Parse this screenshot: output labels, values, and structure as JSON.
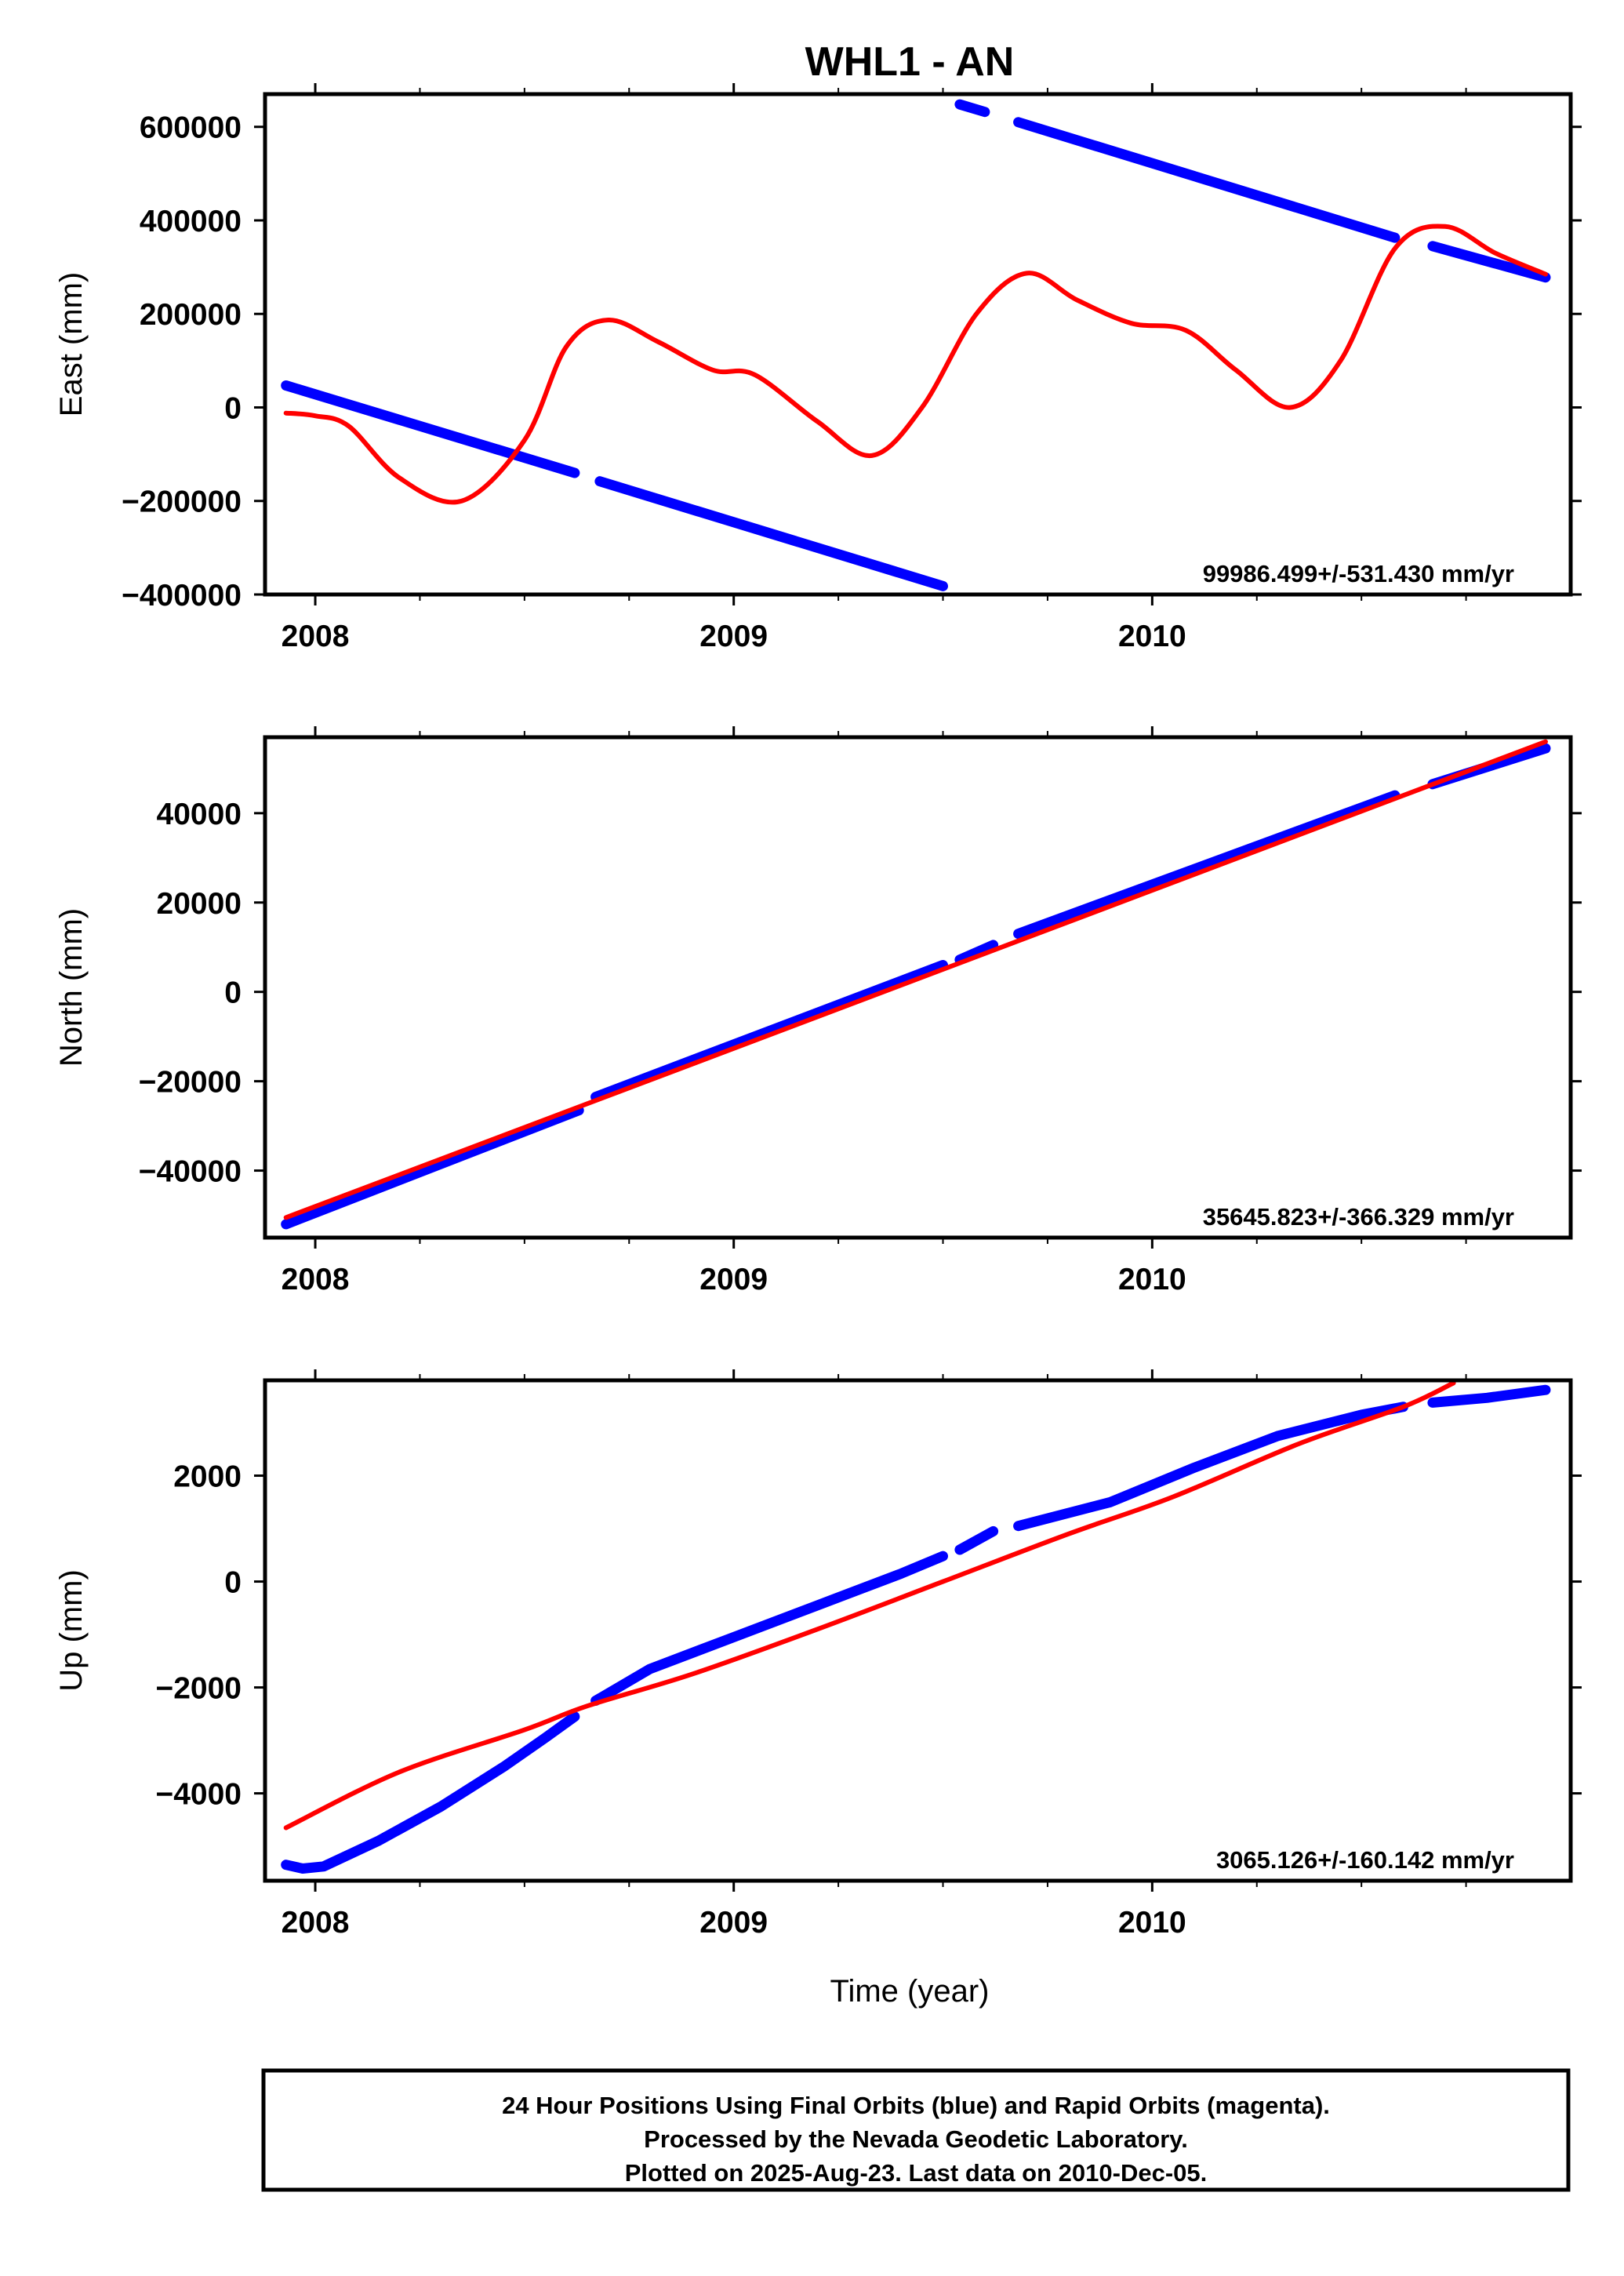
{
  "title": "WHL1 - AN",
  "x_axis_label": "Time (year)",
  "footer": {
    "lines": [
      "24 Hour Positions Using Final Orbits (blue) and Rapid Orbits (magenta).",
      "Processed by the Nevada Geodetic Laboratory.",
      "Plotted on 2025-Aug-23. Last data on 2010-Dec-05."
    ]
  },
  "colors": {
    "data": "#0000ff",
    "model": "#ff0000",
    "frame": "#000000"
  },
  "chart_data": [
    {
      "type": "scatter",
      "panel": "east",
      "ylabel": "East (mm)",
      "xlim": [
        2007.88,
        2011.0
      ],
      "ylim": [
        -400000,
        670000
      ],
      "yticks": [
        600000,
        400000,
        200000,
        0,
        -200000,
        -400000
      ],
      "ytick_labels": [
        "600000",
        "400000",
        "200000",
        "0",
        "−200000",
        "−400000"
      ],
      "xticks": [
        2008,
        2009,
        2010
      ],
      "xtick_labels": [
        "2008",
        "2009",
        "2010"
      ],
      "rate_label": "99986.499+/-531.430 mm/yr",
      "series": [
        {
          "kind": "data",
          "segments": [
            [
              [
                2007.93,
                47000
              ],
              [
                2008.62,
                -140000
              ]
            ],
            [
              [
                2008.68,
                -158000
              ],
              [
                2009.5,
                -382000
              ]
            ],
            [
              [
                2009.54,
                648000
              ],
              [
                2009.6,
                632000
              ]
            ],
            [
              [
                2009.68,
                610000
              ],
              [
                2010.58,
                363000
              ]
            ],
            [
              [
                2010.67,
                345000
              ],
              [
                2010.94,
                278000
              ]
            ]
          ]
        },
        {
          "kind": "model",
          "points": [
            [
              2007.93,
              -12000
            ],
            [
              2008.0,
              -18000
            ],
            [
              2008.08,
              -40000
            ],
            [
              2008.2,
              -150000
            ],
            [
              2008.35,
              -200000
            ],
            [
              2008.5,
              -70000
            ],
            [
              2008.6,
              130000
            ],
            [
              2008.7,
              187000
            ],
            [
              2008.82,
              140000
            ],
            [
              2008.95,
              80000
            ],
            [
              2009.05,
              70000
            ],
            [
              2009.2,
              -30000
            ],
            [
              2009.33,
              -103000
            ],
            [
              2009.45,
              0
            ],
            [
              2009.58,
              200000
            ],
            [
              2009.7,
              287000
            ],
            [
              2009.82,
              230000
            ],
            [
              2009.95,
              180000
            ],
            [
              2010.08,
              165000
            ],
            [
              2010.2,
              80000
            ],
            [
              2010.33,
              0
            ],
            [
              2010.45,
              100000
            ],
            [
              2010.58,
              340000
            ],
            [
              2010.7,
              387000
            ],
            [
              2010.82,
              330000
            ],
            [
              2010.94,
              285000
            ]
          ]
        }
      ]
    },
    {
      "type": "scatter",
      "panel": "north",
      "ylabel": "North (mm)",
      "xlim": [
        2007.88,
        2011.0
      ],
      "ylim": [
        -55000,
        57000
      ],
      "yticks": [
        40000,
        20000,
        0,
        -20000,
        -40000
      ],
      "ytick_labels": [
        "40000",
        "20000",
        "0",
        "−20000",
        "−40000"
      ],
      "xticks": [
        2008,
        2009,
        2010
      ],
      "xtick_labels": [
        "2008",
        "2009",
        "2010"
      ],
      "rate_label": "35645.823+/-366.329 mm/yr",
      "series": [
        {
          "kind": "data",
          "segments": [
            [
              [
                2007.93,
                -52000
              ],
              [
                2008.63,
                -26500
              ]
            ],
            [
              [
                2008.67,
                -23500
              ],
              [
                2009.5,
                6000
              ]
            ],
            [
              [
                2009.54,
                7200
              ],
              [
                2009.62,
                10500
              ]
            ],
            [
              [
                2009.68,
                13000
              ],
              [
                2010.58,
                44000
              ]
            ],
            [
              [
                2010.67,
                46500
              ],
              [
                2010.94,
                54500
              ]
            ]
          ]
        },
        {
          "kind": "model",
          "points": [
            [
              2007.93,
              -50500
            ],
            [
              2010.94,
              56000
            ]
          ]
        }
      ]
    },
    {
      "type": "scatter",
      "panel": "up",
      "ylabel": "Up (mm)",
      "xlim": [
        2007.88,
        2011.0
      ],
      "ylim": [
        -5650,
        3800
      ],
      "yticks": [
        2000,
        0,
        -2000,
        -4000
      ],
      "ytick_labels": [
        "2000",
        "0",
        "−2000",
        "−4000"
      ],
      "xticks": [
        2008,
        2009,
        2010
      ],
      "xtick_labels": [
        "2008",
        "2009",
        "2010"
      ],
      "rate_label": "3065.126+/-160.142 mm/yr",
      "series": [
        {
          "kind": "data",
          "segments": [
            [
              [
                2007.93,
                -5350
              ],
              [
                2007.97,
                -5420
              ],
              [
                2008.02,
                -5380
              ],
              [
                2008.15,
                -4900
              ],
              [
                2008.3,
                -4250
              ],
              [
                2008.45,
                -3500
              ],
              [
                2008.55,
                -2950
              ],
              [
                2008.62,
                -2550
              ]
            ],
            [
              [
                2008.67,
                -2250
              ],
              [
                2008.8,
                -1650
              ],
              [
                2009.0,
                -1050
              ],
              [
                2009.2,
                -450
              ],
              [
                2009.4,
                150
              ],
              [
                2009.5,
                480
              ]
            ],
            [
              [
                2009.54,
                600
              ],
              [
                2009.62,
                950
              ]
            ],
            [
              [
                2009.68,
                1050
              ],
              [
                2009.9,
                1500
              ],
              [
                2010.1,
                2150
              ],
              [
                2010.3,
                2750
              ],
              [
                2010.5,
                3150
              ],
              [
                2010.6,
                3300
              ]
            ],
            [
              [
                2010.67,
                3380
              ],
              [
                2010.8,
                3470
              ],
              [
                2010.94,
                3620
              ]
            ]
          ]
        },
        {
          "kind": "model",
          "points": [
            [
              2007.93,
              -4650
            ],
            [
              2008.2,
              -3600
            ],
            [
              2008.5,
              -2800
            ],
            [
              2008.65,
              -2350
            ],
            [
              2008.9,
              -1750
            ],
            [
              2009.2,
              -900
            ],
            [
              2009.5,
              0
            ],
            [
              2009.8,
              900
            ],
            [
              2010.05,
              1600
            ],
            [
              2010.35,
              2600
            ],
            [
              2010.6,
              3300
            ],
            [
              2010.72,
              3750
            ]
          ]
        }
      ]
    }
  ]
}
